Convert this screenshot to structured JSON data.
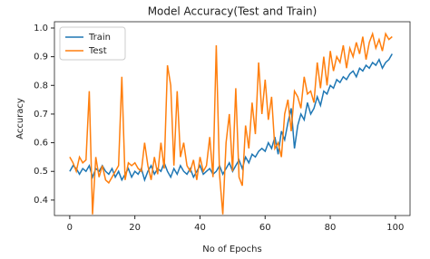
{
  "chart_data": {
    "type": "line",
    "title": "Model Accuracy(Test and Train)",
    "x_label": "No of Epochs",
    "y_label": "Accuracy",
    "x": [
      0,
      1,
      2,
      3,
      4,
      5,
      6,
      7,
      8,
      9,
      10,
      11,
      12,
      13,
      14,
      15,
      16,
      17,
      18,
      19,
      20,
      21,
      22,
      23,
      24,
      25,
      26,
      27,
      28,
      29,
      30,
      31,
      32,
      33,
      34,
      35,
      36,
      37,
      38,
      39,
      40,
      41,
      42,
      43,
      44,
      45,
      46,
      47,
      48,
      49,
      50,
      51,
      52,
      53,
      54,
      55,
      56,
      57,
      58,
      59,
      60,
      61,
      62,
      63,
      64,
      65,
      66,
      67,
      68,
      69,
      70,
      71,
      72,
      73,
      74,
      75,
      76,
      77,
      78,
      79,
      80,
      81,
      82,
      83,
      84,
      85,
      86,
      87,
      88,
      89,
      90,
      91,
      92,
      93,
      94,
      95,
      96,
      97,
      98,
      99
    ],
    "series": [
      {
        "name": "Train",
        "color": "#1f77b4",
        "values": [
          0.5,
          0.52,
          0.51,
          0.49,
          0.51,
          0.5,
          0.52,
          0.48,
          0.51,
          0.5,
          0.52,
          0.5,
          0.49,
          0.51,
          0.48,
          0.5,
          0.47,
          0.49,
          0.51,
          0.48,
          0.5,
          0.49,
          0.51,
          0.47,
          0.5,
          0.52,
          0.49,
          0.51,
          0.5,
          0.53,
          0.5,
          0.48,
          0.51,
          0.49,
          0.52,
          0.5,
          0.49,
          0.51,
          0.48,
          0.5,
          0.52,
          0.49,
          0.5,
          0.51,
          0.49,
          0.5,
          0.52,
          0.49,
          0.51,
          0.53,
          0.5,
          0.52,
          0.54,
          0.51,
          0.55,
          0.53,
          0.56,
          0.55,
          0.57,
          0.58,
          0.57,
          0.6,
          0.58,
          0.62,
          0.56,
          0.64,
          0.61,
          0.67,
          0.72,
          0.58,
          0.66,
          0.7,
          0.68,
          0.74,
          0.7,
          0.72,
          0.76,
          0.73,
          0.78,
          0.77,
          0.8,
          0.79,
          0.82,
          0.81,
          0.83,
          0.82,
          0.84,
          0.85,
          0.83,
          0.86,
          0.85,
          0.87,
          0.86,
          0.88,
          0.87,
          0.89,
          0.86,
          0.88,
          0.89,
          0.91
        ]
      },
      {
        "name": "Test",
        "color": "#ff7f0e",
        "values": [
          0.55,
          0.53,
          0.5,
          0.55,
          0.53,
          0.54,
          0.78,
          0.35,
          0.55,
          0.48,
          0.52,
          0.47,
          0.46,
          0.48,
          0.5,
          0.52,
          0.83,
          0.47,
          0.53,
          0.52,
          0.53,
          0.51,
          0.5,
          0.6,
          0.52,
          0.47,
          0.55,
          0.49,
          0.6,
          0.51,
          0.87,
          0.8,
          0.52,
          0.78,
          0.55,
          0.6,
          0.52,
          0.5,
          0.54,
          0.47,
          0.55,
          0.5,
          0.52,
          0.62,
          0.48,
          0.94,
          0.49,
          0.35,
          0.6,
          0.7,
          0.5,
          0.79,
          0.48,
          0.45,
          0.66,
          0.58,
          0.74,
          0.63,
          0.88,
          0.7,
          0.82,
          0.68,
          0.76,
          0.58,
          0.6,
          0.55,
          0.7,
          0.75,
          0.64,
          0.78,
          0.76,
          0.72,
          0.83,
          0.77,
          0.78,
          0.74,
          0.88,
          0.79,
          0.9,
          0.8,
          0.92,
          0.85,
          0.9,
          0.88,
          0.94,
          0.86,
          0.93,
          0.9,
          0.95,
          0.91,
          0.97,
          0.89,
          0.95,
          0.98,
          0.93,
          0.96,
          0.92,
          0.98,
          0.96,
          0.97
        ]
      }
    ],
    "xlim": [
      -4.7,
      104.5
    ],
    "ylim": [
      0.346,
      1.022
    ],
    "xticks": [
      0,
      20,
      40,
      60,
      80,
      100
    ],
    "yticks": [
      0.4,
      0.5,
      0.6,
      0.7,
      0.8,
      0.9,
      {
        "value": 1,
        "label": "1.0"
      }
    ],
    "legend": "upper left"
  }
}
